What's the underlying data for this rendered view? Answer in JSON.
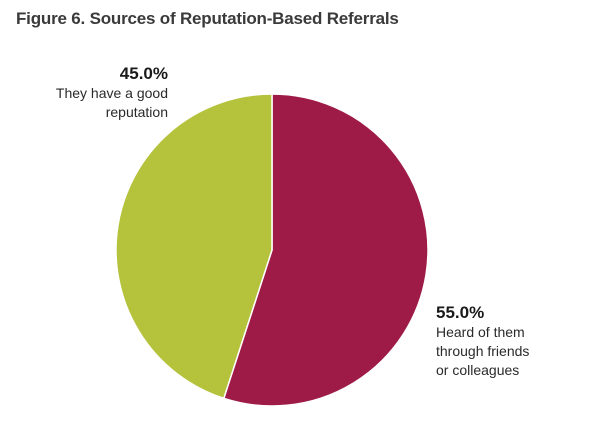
{
  "title": "Figure 6. Sources of Reputation-Based Referrals",
  "chart_data": {
    "type": "pie",
    "title": "Figure 6. Sources of Reputation-Based Referrals",
    "slices": [
      {
        "label_lines": [
          "Heard of them",
          "through friends",
          "or colleagues"
        ],
        "value": 55.0,
        "value_label": "55.0%",
        "color": "#9e1b48"
      },
      {
        "label_lines": [
          "They have a good",
          "reputation"
        ],
        "value": 45.0,
        "value_label": "45.0%",
        "color": "#b5c23c"
      }
    ],
    "start_angle_deg": 0,
    "direction": "clockwise",
    "legend": "none"
  }
}
